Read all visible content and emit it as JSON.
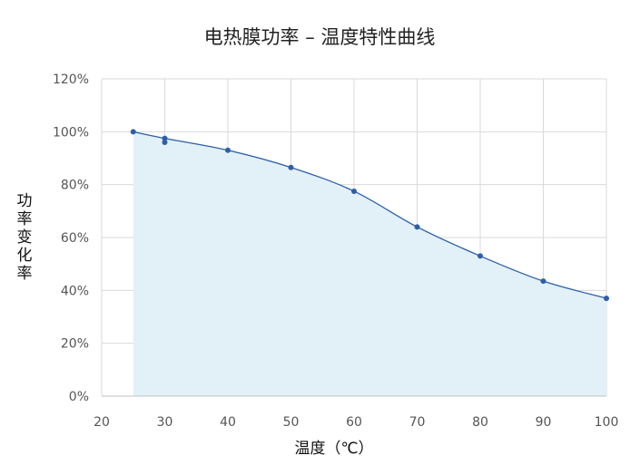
{
  "chart_data": {
    "type": "area",
    "title": "电热膜功率 – 温度特性曲线",
    "xlabel": "温度（℃）",
    "ylabel": "功率变化率",
    "xlim": [
      20,
      100
    ],
    "ylim": [
      0,
      120
    ],
    "x_ticks": [
      "20",
      "30",
      "40",
      "50",
      "60",
      "70",
      "80",
      "90",
      "100"
    ],
    "y_ticks": [
      "0%",
      "20%",
      "40%",
      "60%",
      "80%",
      "100%",
      "120%"
    ],
    "grid": true,
    "series": [
      {
        "color": "#2e5fa7",
        "fill": "#e2f0f8",
        "points": [
          {
            "x": 25,
            "y": 100
          },
          {
            "x": 30,
            "y": 97.5
          },
          {
            "x": 30,
            "y": 96
          },
          {
            "x": 40,
            "y": 93
          },
          {
            "x": 50,
            "y": 86.5
          },
          {
            "x": 60,
            "y": 77.5
          },
          {
            "x": 70,
            "y": 64
          },
          {
            "x": 80,
            "y": 53
          },
          {
            "x": 90,
            "y": 43.5
          },
          {
            "x": 100,
            "y": 37
          }
        ]
      }
    ]
  }
}
